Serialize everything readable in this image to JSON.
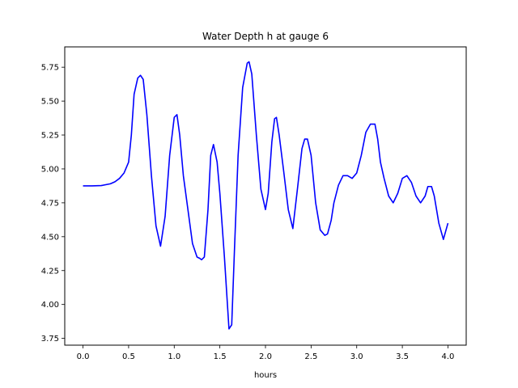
{
  "chart_data": {
    "type": "line",
    "title": "Water Depth h at gauge 6",
    "xlabel": "hours",
    "ylabel": "",
    "xlim": [
      -0.2,
      4.2
    ],
    "ylim": [
      3.7,
      5.9
    ],
    "grid": false,
    "legend": "none",
    "x_ticks": [
      0.0,
      0.5,
      1.0,
      1.5,
      2.0,
      2.5,
      3.0,
      3.5,
      4.0
    ],
    "x_tick_labels": [
      "0.0",
      "0.5",
      "1.0",
      "1.5",
      "2.0",
      "2.5",
      "3.0",
      "3.5",
      "4.0"
    ],
    "y_ticks": [
      3.75,
      4.0,
      4.25,
      4.5,
      4.75,
      5.0,
      5.25,
      5.5,
      5.75
    ],
    "y_tick_labels": [
      "3.75",
      "4.00",
      "4.25",
      "4.50",
      "4.75",
      "5.00",
      "5.25",
      "5.50",
      "5.75"
    ],
    "series": [
      {
        "color": "#0000ff",
        "x": [
          0.0,
          0.1,
          0.2,
          0.3,
          0.35,
          0.4,
          0.45,
          0.5,
          0.53,
          0.56,
          0.6,
          0.63,
          0.66,
          0.7,
          0.75,
          0.8,
          0.85,
          0.9,
          0.95,
          1.0,
          1.03,
          1.06,
          1.1,
          1.15,
          1.2,
          1.25,
          1.28,
          1.3,
          1.33,
          1.37,
          1.4,
          1.43,
          1.47,
          1.5,
          1.55,
          1.6,
          1.63,
          1.66,
          1.7,
          1.75,
          1.8,
          1.82,
          1.85,
          1.9,
          1.95,
          2.0,
          2.03,
          2.07,
          2.1,
          2.12,
          2.15,
          2.2,
          2.25,
          2.3,
          2.35,
          2.4,
          2.43,
          2.46,
          2.5,
          2.55,
          2.6,
          2.65,
          2.68,
          2.72,
          2.75,
          2.8,
          2.85,
          2.9,
          2.95,
          3.0,
          3.05,
          3.1,
          3.15,
          3.2,
          3.23,
          3.26,
          3.3,
          3.35,
          3.4,
          3.45,
          3.5,
          3.55,
          3.6,
          3.65,
          3.7,
          3.75,
          3.78,
          3.82,
          3.85,
          3.9,
          3.95,
          4.0
        ],
        "values": [
          4.875,
          4.875,
          4.877,
          4.89,
          4.905,
          4.93,
          4.97,
          5.05,
          5.25,
          5.55,
          5.67,
          5.69,
          5.66,
          5.4,
          4.95,
          4.58,
          4.43,
          4.65,
          5.1,
          5.38,
          5.4,
          5.25,
          4.95,
          4.7,
          4.45,
          4.35,
          4.34,
          4.33,
          4.35,
          4.7,
          5.1,
          5.18,
          5.05,
          4.82,
          4.35,
          3.82,
          3.85,
          4.4,
          5.1,
          5.6,
          5.78,
          5.79,
          5.7,
          5.25,
          4.85,
          4.7,
          4.82,
          5.2,
          5.37,
          5.38,
          5.25,
          4.98,
          4.7,
          4.56,
          4.85,
          5.15,
          5.22,
          5.22,
          5.1,
          4.75,
          4.55,
          4.51,
          4.52,
          4.62,
          4.75,
          4.88,
          4.95,
          4.95,
          4.93,
          4.97,
          5.1,
          5.27,
          5.33,
          5.33,
          5.22,
          5.05,
          4.93,
          4.8,
          4.75,
          4.82,
          4.93,
          4.95,
          4.9,
          4.8,
          4.75,
          4.8,
          4.87,
          4.87,
          4.8,
          4.6,
          4.48,
          4.6
        ]
      }
    ]
  }
}
